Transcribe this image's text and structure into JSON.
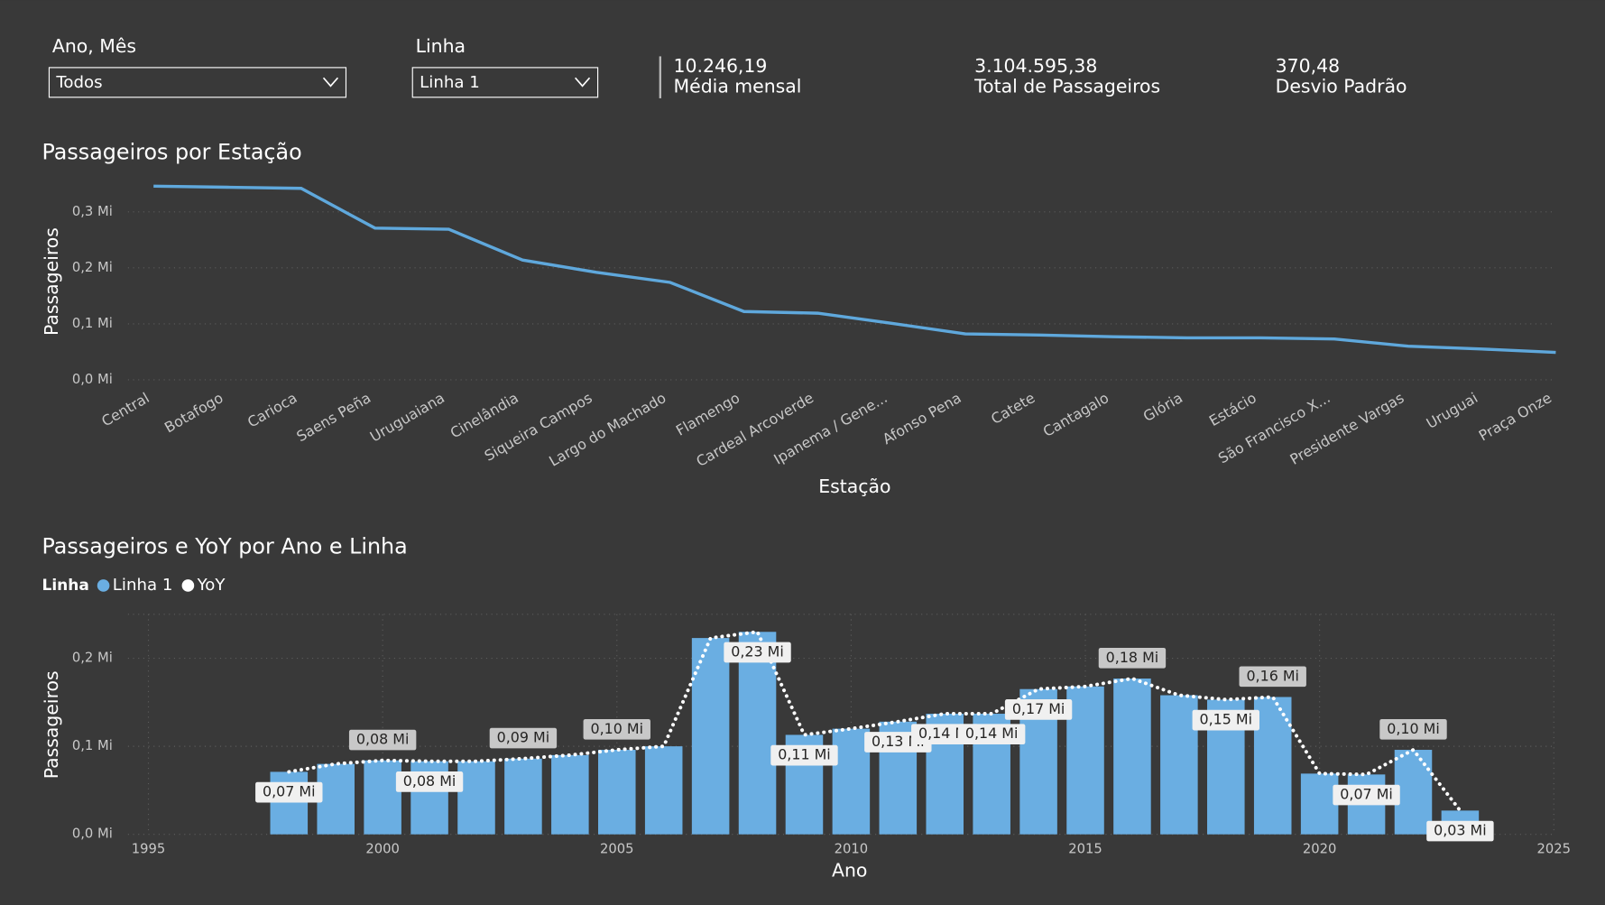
{
  "filters": [
    {
      "label": "Ano, Mês",
      "value": "Todos"
    },
    {
      "label": "Linha",
      "value": "Linha 1"
    }
  ],
  "kpis": [
    {
      "value": "10.246,19",
      "label": "Média mensal"
    },
    {
      "value": "3.104.595,38",
      "label": "Total de Passageiros"
    },
    {
      "value": "370,48",
      "label": "Desvio Padrão"
    }
  ],
  "chart_data": [
    {
      "type": "line",
      "title": "Passageiros por Estação",
      "x_label": "Estação",
      "y_label": "Passageiros",
      "color": "#5fa8dc",
      "grid": true,
      "categories": [
        "Central",
        "Botafogo",
        "Carioca",
        "Saens Peña",
        "Uruguaiana",
        "Cinelândia",
        "Siqueira Campos",
        "Largo do Machado",
        "Flamengo",
        "Cardeal Arcoverde",
        "Ipanema / Gene...",
        "Afonso Pena",
        "Catete",
        "Cantagalo",
        "Glória",
        "Estácio",
        "São Francisco X...",
        "Presidente Vargas",
        "Uruguai",
        "Praça Onze"
      ],
      "values": [
        0.346,
        0.344,
        0.342,
        0.271,
        0.269,
        0.214,
        0.192,
        0.174,
        0.122,
        0.119,
        0.101,
        0.082,
        0.08,
        0.077,
        0.075,
        0.075,
        0.073,
        0.06,
        0.055,
        0.049
      ],
      "ylim": [
        0,
        0.35
      ],
      "yticks": [
        {
          "value": 0,
          "label": "0,0 Mi"
        },
        {
          "value": 0.1,
          "label": "0,1 Mi"
        },
        {
          "value": 0.2,
          "label": "0,2 Mi"
        },
        {
          "value": 0.3,
          "label": "0,3 Mi"
        }
      ]
    },
    {
      "type": "combo",
      "title": "Passageiros e YoY por Ano e Linha",
      "legend_title": "Linha",
      "x_label": "Ano",
      "y_label": "Passageiros",
      "grid": true,
      "x": [
        1998,
        1999,
        2000,
        2001,
        2002,
        2003,
        2004,
        2005,
        2006,
        2007,
        2008,
        2009,
        2010,
        2011,
        2012,
        2013,
        2014,
        2015,
        2016,
        2017,
        2018,
        2019,
        2020,
        2021,
        2022,
        2023
      ],
      "series": [
        {
          "name": "Linha 1",
          "type": "bar",
          "color": "#6aaee2",
          "values": [
            0.071,
            0.08,
            0.084,
            0.083,
            0.083,
            0.086,
            0.09,
            0.096,
            0.1,
            0.223,
            0.23,
            0.113,
            0.12,
            0.128,
            0.137,
            0.137,
            0.165,
            0.168,
            0.177,
            0.158,
            0.153,
            0.156,
            0.069,
            0.068,
            0.096,
            0.027
          ]
        },
        {
          "name": "YoY",
          "type": "line",
          "color": "#ffffff",
          "values": [
            0.071,
            0.08,
            0.084,
            0.083,
            0.083,
            0.086,
            0.09,
            0.096,
            0.1,
            0.223,
            0.23,
            0.113,
            0.12,
            0.128,
            0.137,
            0.137,
            0.165,
            0.168,
            0.177,
            0.158,
            0.153,
            0.156,
            0.069,
            0.068,
            0.096,
            0.027
          ],
          "value_labels": [
            "0,07 Mi",
            null,
            "0,08 Mi",
            "0,08 Mi",
            null,
            "0,09 Mi",
            null,
            "0,10 Mi",
            null,
            null,
            "0,23 Mi",
            "0,11 Mi",
            null,
            "0,13 Mi",
            "0,14 Mi",
            "0,14 Mi",
            "0,17 Mi",
            null,
            "0,18 Mi",
            null,
            "0,15 Mi",
            "0,16 Mi",
            null,
            "0,07 Mi",
            "0,10 Mi",
            "0,03 Mi"
          ]
        }
      ],
      "xlim": [
        1995,
        2025
      ],
      "xticks": [
        1995,
        2000,
        2005,
        2010,
        2015,
        2020,
        2025
      ],
      "ylim": [
        0,
        0.25
      ],
      "yticks": [
        {
          "value": 0,
          "label": "0,0 Mi"
        },
        {
          "value": 0.1,
          "label": "0,1 Mi"
        },
        {
          "value": 0.2,
          "label": "0,2 Mi"
        }
      ]
    }
  ]
}
